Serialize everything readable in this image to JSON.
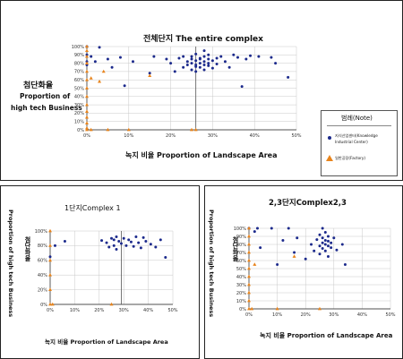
{
  "colors": {
    "knowledge": "#1c2a8c",
    "factory": "#e8841c",
    "grid": "#c8c8c8",
    "axis": "#222222"
  },
  "top_title": "전체단지 The entire complex",
  "top_ylabel_ko": "첨단화율",
  "top_ylabel_en1": "Proportion of",
  "top_ylabel_en2": "high tech Business",
  "top_xlabel": "녹지 비율 Proportion of Landscape Area",
  "left_title": "1단지Complex 1",
  "left_ylabel": "Proportion of high tech Business",
  "left_ylabel_ko": "첨단화율",
  "left_xlabel": "녹지 비율 Proportion of Landscape Area",
  "right_title": "2,3단지Complex2,3",
  "right_ylabel": "Proportion of high tech Business",
  "right_ylabel_ko": "첨단화율",
  "right_xlabel": "녹지 비율 Proportion of Landscape Area",
  "legend": {
    "title": "범례(Note)",
    "items": [
      {
        "label1": "지식산업센터(Knowledge",
        "label2": "Industrial Center)",
        "symbol": "circle"
      },
      {
        "label1": "일반공장(Factory)",
        "label2": "",
        "symbol": "triangle"
      }
    ]
  },
  "chart_data": [
    {
      "type": "scatter",
      "title": "전체단지 The entire complex",
      "xlabel": "녹지 비율 Proportion of Landscape Area",
      "ylabel": "첨단화율 Proportion of high tech Business",
      "xlim": [
        0,
        50
      ],
      "ylim": [
        0,
        100
      ],
      "xticks": [
        "0%",
        "10%",
        "20%",
        "30%",
        "40%",
        "50%"
      ],
      "yticks": [
        "0%",
        "10%",
        "20%",
        "30%",
        "40%",
        "50%",
        "60%",
        "70%",
        "80%",
        "90%",
        "100%"
      ],
      "grid": true,
      "legend": "right",
      "series": [
        {
          "name": "지식산업센터(Knowledge Industrial Center)",
          "points": [
            [
              0,
              100
            ],
            [
              3,
              99
            ],
            [
              0,
              90
            ],
            [
              0,
              82
            ],
            [
              0,
              78
            ],
            [
              5,
              85
            ],
            [
              6,
              75
            ],
            [
              8,
              87
            ],
            [
              9,
              53
            ],
            [
              11,
              82
            ],
            [
              15,
              68
            ],
            [
              16,
              88
            ],
            [
              19,
              85
            ],
            [
              20,
              80
            ],
            [
              21,
              70
            ],
            [
              22,
              86
            ],
            [
              23,
              75
            ],
            [
              23,
              88
            ],
            [
              24,
              82
            ],
            [
              24,
              78
            ],
            [
              25,
              80
            ],
            [
              25,
              72
            ],
            [
              25,
              85
            ],
            [
              25,
              88
            ],
            [
              26,
              76
            ],
            [
              26,
              70
            ],
            [
              26,
              83
            ],
            [
              26,
              91
            ],
            [
              26,
              78
            ],
            [
              27,
              85
            ],
            [
              27,
              75
            ],
            [
              27,
              80
            ],
            [
              27,
              86
            ],
            [
              28,
              82
            ],
            [
              28,
              78
            ],
            [
              28,
              88
            ],
            [
              28,
              95
            ],
            [
              28,
              72
            ],
            [
              29,
              80
            ],
            [
              29,
              85
            ],
            [
              29,
              77
            ],
            [
              29,
              90
            ],
            [
              30,
              83
            ],
            [
              31,
              79
            ],
            [
              31,
              86
            ],
            [
              32,
              88
            ],
            [
              33,
              82
            ],
            [
              34,
              75
            ],
            [
              35,
              90
            ],
            [
              36,
              87
            ],
            [
              37,
              52
            ],
            [
              38,
              85
            ],
            [
              39,
              89
            ],
            [
              41,
              88
            ],
            [
              44,
              87
            ],
            [
              45,
              80
            ],
            [
              48,
              63
            ],
            [
              1,
              88
            ],
            [
              2,
              82
            ],
            [
              30,
              74
            ]
          ]
        },
        {
          "name": "일반공장(Factory)",
          "points": [
            [
              0,
              100
            ],
            [
              0,
              95
            ],
            [
              0,
              88
            ],
            [
              0,
              80
            ],
            [
              0,
              70
            ],
            [
              0,
              60
            ],
            [
              0,
              50
            ],
            [
              0,
              40
            ],
            [
              0,
              30
            ],
            [
              0,
              22
            ],
            [
              0,
              15
            ],
            [
              0,
              8
            ],
            [
              0,
              2
            ],
            [
              0,
              0
            ],
            [
              1,
              0
            ],
            [
              5,
              0
            ],
            [
              10,
              0
            ],
            [
              15,
              65
            ],
            [
              25,
              0
            ],
            [
              26,
              0
            ],
            [
              3,
              58
            ],
            [
              4,
              70
            ],
            [
              1,
              62
            ]
          ]
        }
      ]
    },
    {
      "type": "scatter",
      "title": "1단지Complex 1",
      "xlabel": "녹지 비율 Proportion of Landscape Area",
      "ylabel": "첨단화율 Proportion of high tech Business",
      "xlim": [
        0,
        50
      ],
      "ylim": [
        0,
        100
      ],
      "xticks": [
        "0%",
        "10%",
        "20%",
        "30%",
        "40%",
        "50%"
      ],
      "yticks": [
        "0%",
        "20%",
        "40%",
        "60%",
        "80%",
        "100%"
      ],
      "grid": true,
      "series": [
        {
          "name": "지식산업센터(Knowledge Industrial Center)",
          "points": [
            [
              0,
              65
            ],
            [
              2,
              80
            ],
            [
              6,
              86
            ],
            [
              21,
              87
            ],
            [
              23,
              84
            ],
            [
              24,
              78
            ],
            [
              25,
              90
            ],
            [
              26,
              88
            ],
            [
              26,
              80
            ],
            [
              27,
              92
            ],
            [
              27,
              75
            ],
            [
              28,
              86
            ],
            [
              29,
              83
            ],
            [
              30,
              90
            ],
            [
              31,
              80
            ],
            [
              32,
              88
            ],
            [
              33,
              85
            ],
            [
              34,
              79
            ],
            [
              35,
              92
            ],
            [
              36,
              84
            ],
            [
              37,
              77
            ],
            [
              38,
              91
            ],
            [
              39,
              86
            ],
            [
              41,
              82
            ],
            [
              43,
              78
            ],
            [
              45,
              88
            ],
            [
              47,
              64
            ]
          ]
        },
        {
          "name": "일반공장(Factory)",
          "points": [
            [
              0,
              100
            ],
            [
              0,
              80
            ],
            [
              0,
              60
            ],
            [
              0,
              40
            ],
            [
              0,
              20
            ],
            [
              0,
              0
            ],
            [
              1,
              0
            ],
            [
              25,
              0
            ]
          ]
        }
      ]
    },
    {
      "type": "scatter",
      "title": "2,3단지Complex2,3",
      "xlabel": "녹지 비율 Proportion of Landscape Area",
      "ylabel": "첨단화율 Proportion of high tech Business",
      "xlim": [
        0,
        50
      ],
      "ylim": [
        0,
        100
      ],
      "xticks": [
        "0%",
        "10%",
        "20%",
        "30%",
        "40%",
        "50%"
      ],
      "yticks": [
        "0%",
        "10%",
        "20%",
        "30%",
        "40%",
        "50%",
        "60%",
        "70%",
        "80%",
        "90%",
        "100%"
      ],
      "grid": true,
      "series": [
        {
          "name": "지식산업센터(Knowledge Industrial Center)",
          "points": [
            [
              0,
              100
            ],
            [
              2,
              96
            ],
            [
              3,
              100
            ],
            [
              4,
              76
            ],
            [
              8,
              100
            ],
            [
              10,
              55
            ],
            [
              12,
              85
            ],
            [
              14,
              100
            ],
            [
              16,
              70
            ],
            [
              17,
              88
            ],
            [
              20,
              62
            ],
            [
              22,
              80
            ],
            [
              23,
              72
            ],
            [
              24,
              86
            ],
            [
              25,
              78
            ],
            [
              25,
              92
            ],
            [
              25,
              68
            ],
            [
              26,
              82
            ],
            [
              26,
              75
            ],
            [
              26,
              88
            ],
            [
              27,
              80
            ],
            [
              27,
              72
            ],
            [
              27,
              95
            ],
            [
              27,
              85
            ],
            [
              28,
              78
            ],
            [
              28,
              90
            ],
            [
              28,
              84
            ],
            [
              28,
              65
            ],
            [
              29,
              76
            ],
            [
              29,
              82
            ],
            [
              30,
              88
            ],
            [
              31,
              73
            ],
            [
              33,
              80
            ],
            [
              34,
              55
            ],
            [
              26,
              100
            ]
          ]
        },
        {
          "name": "일반공장(Factory)",
          "points": [
            [
              0,
              100
            ],
            [
              0,
              90
            ],
            [
              0,
              80
            ],
            [
              0,
              70
            ],
            [
              0,
              60
            ],
            [
              0,
              50
            ],
            [
              0,
              40
            ],
            [
              0,
              30
            ],
            [
              0,
              20
            ],
            [
              0,
              10
            ],
            [
              0,
              0
            ],
            [
              1,
              0
            ],
            [
              10,
              0
            ],
            [
              25,
              0
            ],
            [
              16,
              65
            ],
            [
              2,
              55
            ]
          ]
        }
      ]
    }
  ]
}
